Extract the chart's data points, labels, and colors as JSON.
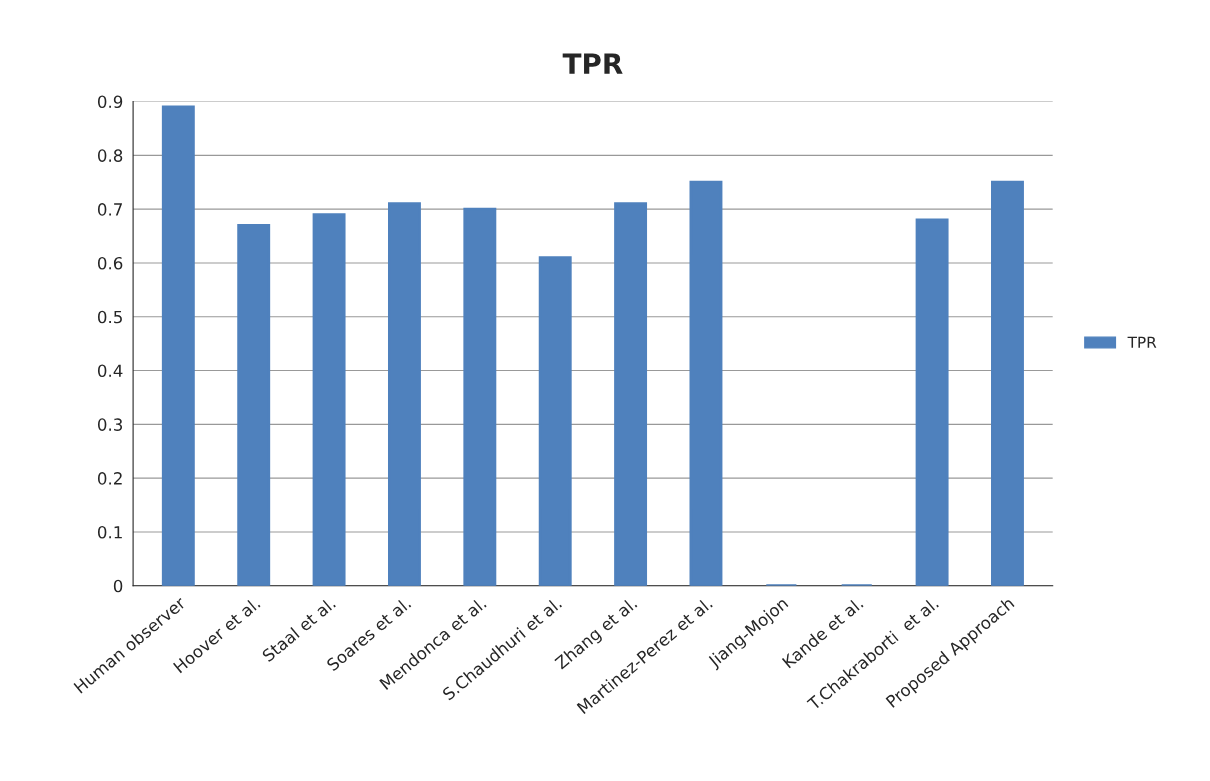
{
  "chart_data": {
    "type": "bar",
    "title": "TPR",
    "categories": [
      "Human observer",
      "Hoover et al.",
      "Staal et al.",
      "Soares et al.",
      "Mendonca et al.",
      "S.Chaudhuri et al.",
      "Zhang et al.",
      "Martinez-Perez et al.",
      "Jiang-Mojon",
      "Kande et al.",
      "T.Chakraborti  et al.",
      "Proposed Approach"
    ],
    "series": [
      {
        "name": "TPR",
        "color": "#4f81bd",
        "values": [
          0.89,
          0.67,
          0.69,
          0.71,
          0.7,
          0.61,
          0.71,
          0.75,
          0,
          0,
          0.68,
          0.75
        ]
      }
    ],
    "ylim": [
      0,
      0.9
    ],
    "yticks": [
      0,
      0.1,
      0.2,
      0.3,
      0.4,
      0.5,
      0.6,
      0.7,
      0.8,
      0.9
    ],
    "grid": "y",
    "legend": "right"
  }
}
